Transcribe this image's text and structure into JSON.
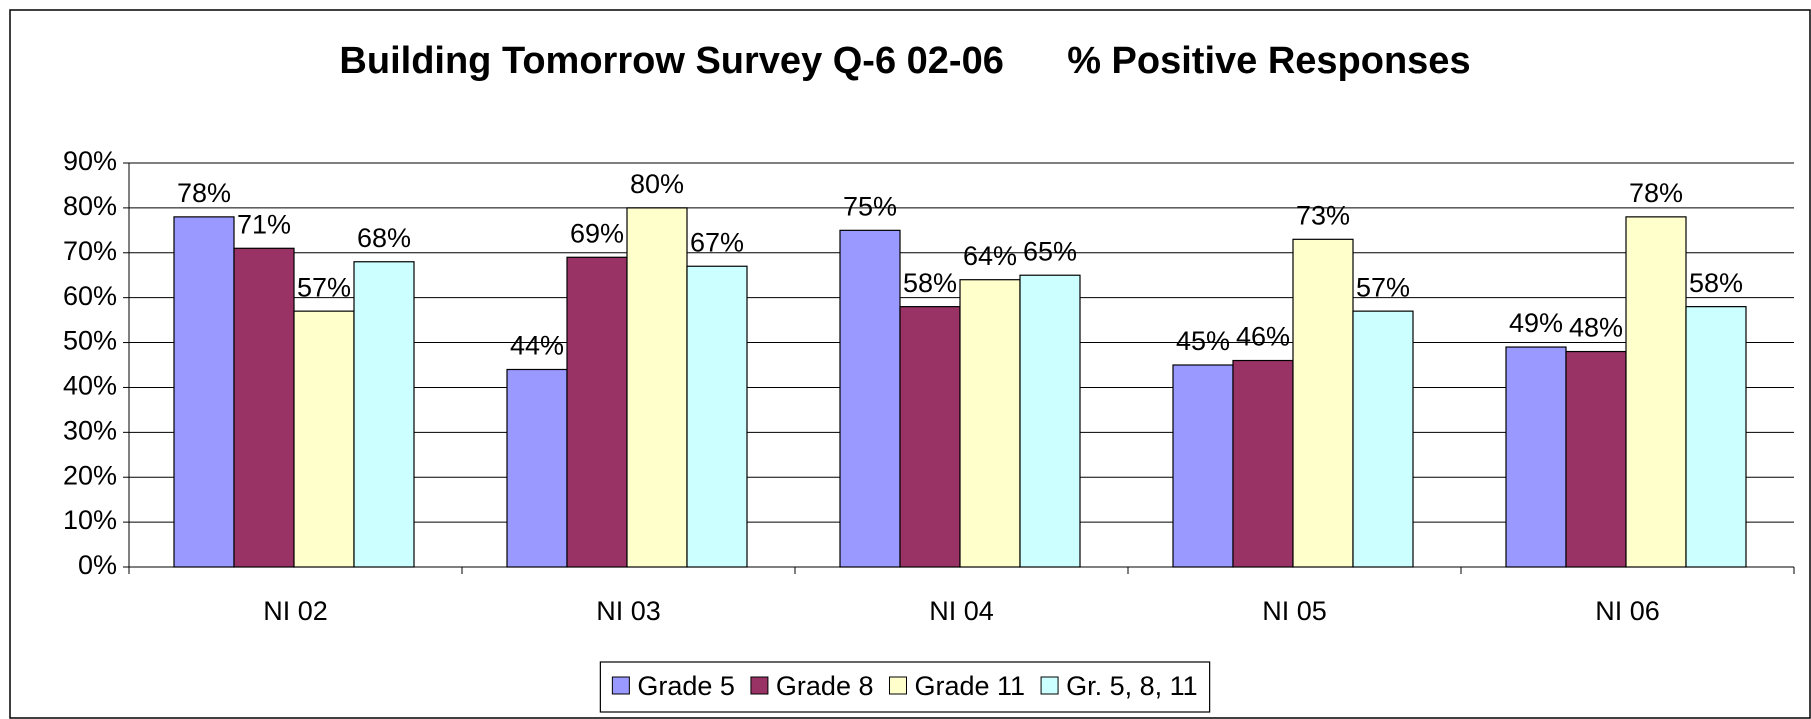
{
  "chart_data": {
    "type": "bar",
    "title": "Building Tomorrow Survey Q-6 02-06      % Positive Responses",
    "categories": [
      "NI 02",
      "NI 03",
      "NI 04",
      "NI 05",
      "NI 06"
    ],
    "series": [
      {
        "name": "Grade 5",
        "color": "#9999ff",
        "values": [
          78,
          44,
          75,
          45,
          49
        ],
        "value_labels": [
          "78%",
          "44%",
          "75%",
          "45%",
          "49%"
        ]
      },
      {
        "name": "Grade 8",
        "color": "#993366",
        "values": [
          71,
          69,
          58,
          46,
          48
        ],
        "value_labels": [
          "71%",
          "69%",
          "58%",
          "46%",
          "48%"
        ]
      },
      {
        "name": "Grade 11",
        "color": "#ffffcc",
        "values": [
          57,
          80,
          64,
          73,
          78
        ],
        "value_labels": [
          "57%",
          "80%",
          "64%",
          "73%",
          "78%"
        ]
      },
      {
        "name": "Gr. 5, 8, 11",
        "color": "#ccffff",
        "values": [
          68,
          67,
          65,
          57,
          58
        ],
        "value_labels": [
          "68%",
          "67%",
          "65%",
          "57%",
          "58%"
        ]
      }
    ],
    "ylim": [
      0,
      90
    ],
    "yticks": [
      {
        "value": 0,
        "label": "0%"
      },
      {
        "value": 10,
        "label": "10%"
      },
      {
        "value": 20,
        "label": "20%"
      },
      {
        "value": 30,
        "label": "30%"
      },
      {
        "value": 40,
        "label": "40%"
      },
      {
        "value": 50,
        "label": "50%"
      },
      {
        "value": 60,
        "label": "60%"
      },
      {
        "value": 70,
        "label": "70%"
      },
      {
        "value": 80,
        "label": "80%"
      },
      {
        "value": 90,
        "label": "90%"
      }
    ],
    "grid": true,
    "legend": "bottom"
  }
}
